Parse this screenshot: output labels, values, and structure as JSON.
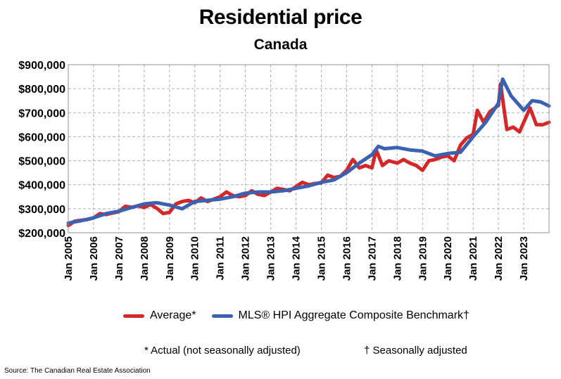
{
  "header": {
    "title": "Residential price",
    "subtitle": "Canada"
  },
  "legend": {
    "average_label": "Average*",
    "hpi_label": "MLS® HPI Aggregate Composite Benchmark†"
  },
  "notes": {
    "actual": "* Actual (not seasonally adjusted)",
    "seasonal": "† Seasonally adjusted"
  },
  "source": "Source: The Canadian Real Estate Association",
  "colors": {
    "average": "#d62728",
    "hpi": "#3a62b0",
    "grid": "#b0b0b0"
  },
  "chart_data": {
    "type": "line",
    "title": "Residential price",
    "subtitle": "Canada",
    "ylim": [
      200000,
      900000
    ],
    "yticks": [
      "$200,000",
      "$300,000",
      "$400,000",
      "$500,000",
      "$600,000",
      "$700,000",
      "$800,000",
      "$900,000"
    ],
    "xlim": [
      "2005-01",
      "2024-01"
    ],
    "xticks": [
      "Jan 2005",
      "Jan 2006",
      "Jan 2007",
      "Jan 2008",
      "Jan 2009",
      "Jan 2010",
      "Jan 2011",
      "Jan 2012",
      "Jan 2013",
      "Jan 2014",
      "Jan 2015",
      "Jan 2016",
      "Jan 2017",
      "Jan 2018",
      "Jan 2019",
      "Jan 2020",
      "Jan 2021",
      "Jan 2022",
      "Jan 2023"
    ],
    "grid": true,
    "legend_position": "bottom",
    "series": [
      {
        "name": "Average*",
        "x": [
          "2005-01",
          "2005-04",
          "2005-07",
          "2005-10",
          "2006-01",
          "2006-04",
          "2006-07",
          "2006-10",
          "2007-01",
          "2007-04",
          "2007-07",
          "2007-10",
          "2008-01",
          "2008-04",
          "2008-07",
          "2008-10",
          "2009-01",
          "2009-04",
          "2009-07",
          "2009-10",
          "2010-01",
          "2010-04",
          "2010-07",
          "2010-10",
          "2011-01",
          "2011-04",
          "2011-07",
          "2011-10",
          "2012-01",
          "2012-04",
          "2012-07",
          "2012-10",
          "2013-01",
          "2013-04",
          "2013-07",
          "2013-10",
          "2014-01",
          "2014-04",
          "2014-07",
          "2014-10",
          "2015-01",
          "2015-04",
          "2015-07",
          "2015-10",
          "2016-01",
          "2016-04",
          "2016-07",
          "2016-10",
          "2017-01",
          "2017-03",
          "2017-06",
          "2017-09",
          "2018-01",
          "2018-04",
          "2018-07",
          "2018-10",
          "2019-01",
          "2019-04",
          "2019-07",
          "2019-10",
          "2020-01",
          "2020-04",
          "2020-07",
          "2020-10",
          "2021-01",
          "2021-03",
          "2021-06",
          "2021-09",
          "2022-01",
          "2022-02",
          "2022-05",
          "2022-08",
          "2022-11",
          "2023-01",
          "2023-04",
          "2023-07",
          "2023-10",
          "2024-01"
        ],
        "y": [
          230000,
          248000,
          252000,
          255000,
          262000,
          280000,
          276000,
          282000,
          288000,
          310000,
          306000,
          312000,
          305000,
          318000,
          302000,
          280000,
          285000,
          320000,
          330000,
          335000,
          325000,
          345000,
          330000,
          340000,
          350000,
          370000,
          355000,
          350000,
          355000,
          375000,
          360000,
          355000,
          370000,
          385000,
          380000,
          375000,
          392000,
          410000,
          400000,
          405000,
          408000,
          440000,
          430000,
          435000,
          460000,
          505000,
          470000,
          480000,
          470000,
          545000,
          480000,
          500000,
          490000,
          505000,
          490000,
          480000,
          460000,
          500000,
          505000,
          515000,
          520000,
          500000,
          565000,
          595000,
          610000,
          710000,
          660000,
          705000,
          730000,
          820000,
          630000,
          640000,
          620000,
          660000,
          720000,
          650000,
          650000,
          660000
        ]
      },
      {
        "name": "MLS® HPI Aggregate Composite Benchmark†",
        "x": [
          "2005-01",
          "2005-07",
          "2006-01",
          "2006-07",
          "2007-01",
          "2007-07",
          "2008-01",
          "2008-07",
          "2009-01",
          "2009-07",
          "2010-01",
          "2010-07",
          "2011-01",
          "2011-07",
          "2012-01",
          "2012-07",
          "2013-01",
          "2013-07",
          "2014-01",
          "2014-07",
          "2015-01",
          "2015-07",
          "2016-01",
          "2016-07",
          "2017-01",
          "2017-04",
          "2017-07",
          "2018-01",
          "2018-07",
          "2019-01",
          "2019-07",
          "2020-01",
          "2020-07",
          "2021-01",
          "2021-07",
          "2022-01",
          "2022-03",
          "2022-07",
          "2023-01",
          "2023-05",
          "2023-09",
          "2024-01"
        ],
        "y": [
          240000,
          250000,
          262000,
          280000,
          290000,
          305000,
          320000,
          325000,
          315000,
          300000,
          330000,
          335000,
          340000,
          350000,
          365000,
          370000,
          370000,
          375000,
          385000,
          395000,
          410000,
          420000,
          450000,
          490000,
          525000,
          560000,
          550000,
          555000,
          545000,
          540000,
          520000,
          530000,
          535000,
          600000,
          660000,
          740000,
          840000,
          770000,
          710000,
          750000,
          745000,
          728000
        ]
      }
    ]
  }
}
